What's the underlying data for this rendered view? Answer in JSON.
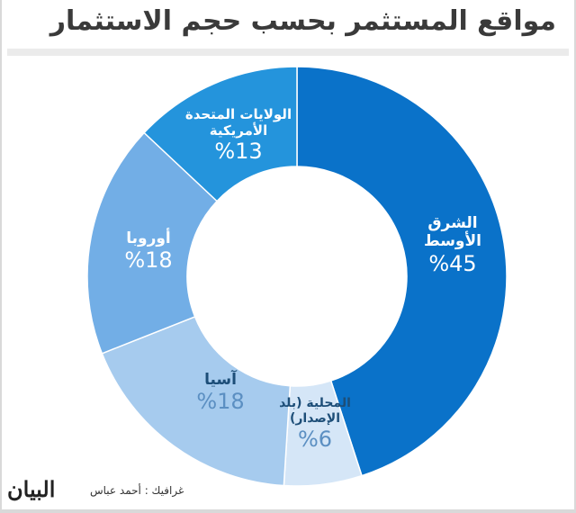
{
  "chart_data": {
    "type": "pie",
    "title": "مواقع المستثمر بحسب حجم الاستثمار",
    "slices": [
      {
        "label": "الشرق الأوسط",
        "pct_label": "%45",
        "value": 45,
        "color": "#0a72c9"
      },
      {
        "label": "المحلية (بلد الإصدار)",
        "pct_label": "%6",
        "value": 6,
        "color": "#d5e6f7"
      },
      {
        "label": "آسيا",
        "pct_label": "%18",
        "value": 18,
        "color": "#a6cbee"
      },
      {
        "label": "أوروبا",
        "pct_label": "%18",
        "value": 18,
        "color": "#72aee6"
      },
      {
        "label": "الولايات المتحدة الأمريكية",
        "pct_label": "%13",
        "value": 13,
        "color": "#2494dc"
      }
    ],
    "style": "donut"
  },
  "footer": {
    "credit": "غرافيك : أحمد عباس",
    "logo": "البيان"
  }
}
